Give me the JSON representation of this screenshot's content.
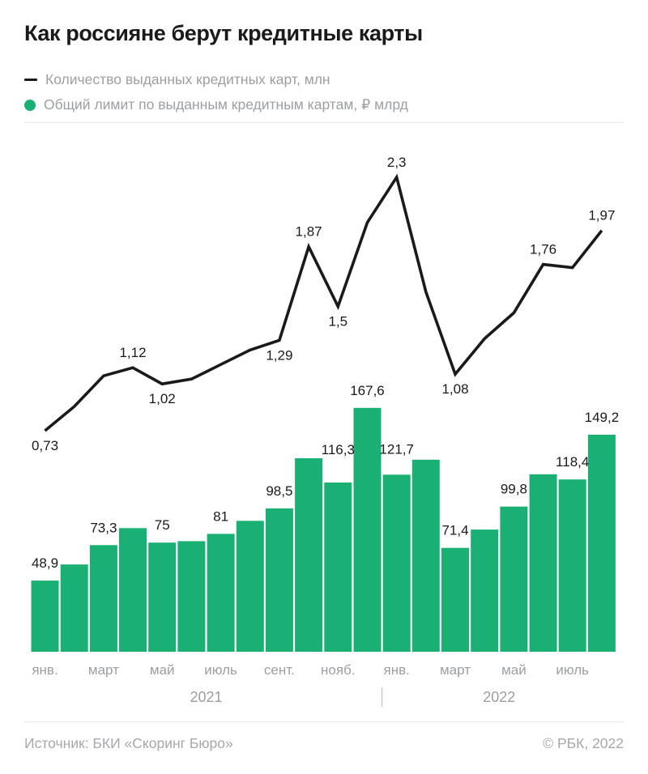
{
  "title": "Как россияне берут кредитные карты",
  "legend": {
    "line_label": "Количество выданных кредитных карт, млн",
    "bar_label": "Общий лимит по выданным кредитным картам, ₽ млрд"
  },
  "colors": {
    "bar_green": "#1ab074",
    "line_black": "#1a1a1a",
    "value_label": "#1a1a1a",
    "gray_text": "#9b9fa3",
    "year_divider": "#c7c9cb",
    "divider": "#e9eaeb",
    "footer_text": "#a5a8ab"
  },
  "footer": {
    "source": "Источник: БКИ «Скоринг Бюро»",
    "copyright": "© РБК, 2022"
  },
  "chart_data": {
    "type": "bar+line",
    "categories": [
      "янв. 2021",
      "февр. 2021",
      "март 2021",
      "апр. 2021",
      "май 2021",
      "июнь 2021",
      "июль 2021",
      "авг. 2021",
      "сент. 2021",
      "окт. 2021",
      "нояб. 2021",
      "дек. 2021",
      "янв. 2022",
      "февр. 2022",
      "март 2022",
      "апр. 2022",
      "май 2022",
      "июнь 2022",
      "июль 2022",
      "авг. 2022"
    ],
    "x_tick_labels": [
      "янв.",
      "март",
      "май",
      "июль",
      "сент.",
      "нояб.",
      "янв.",
      "март",
      "май",
      "июль"
    ],
    "x_tick_every": 2,
    "year_groups": [
      {
        "label": "2021",
        "from_index": 0,
        "to_index": 11
      },
      {
        "label": "2022",
        "from_index": 12,
        "to_index": 19
      }
    ],
    "grid": false,
    "legend_position": "top-left",
    "ylim_line_mln": [
      0,
      2.5
    ],
    "ylim_bars_bln_rub": [
      0,
      180
    ],
    "line_series": {
      "name": "Количество выданных кредитных карт, млн",
      "unit": "млн",
      "values": [
        0.73,
        0.88,
        1.07,
        1.12,
        1.02,
        1.05,
        1.14,
        1.23,
        1.29,
        1.87,
        1.5,
        2.02,
        2.3,
        1.59,
        1.08,
        1.3,
        1.46,
        1.76,
        1.74,
        1.97
      ],
      "labels": [
        {
          "index": 0,
          "text": "0,73",
          "pos": "below"
        },
        {
          "index": 3,
          "text": "1,12",
          "pos": "above"
        },
        {
          "index": 4,
          "text": "1,02",
          "pos": "below"
        },
        {
          "index": 8,
          "text": "1,29",
          "pos": "below"
        },
        {
          "index": 9,
          "text": "1,87",
          "pos": "above"
        },
        {
          "index": 10,
          "text": "1,5",
          "pos": "below"
        },
        {
          "index": 12,
          "text": "2,3",
          "pos": "above"
        },
        {
          "index": 14,
          "text": "1,08",
          "pos": "below"
        },
        {
          "index": 17,
          "text": "1,76",
          "pos": "above"
        },
        {
          "index": 19,
          "text": "1,97",
          "pos": "above"
        }
      ]
    },
    "bar_series": {
      "name": "Общий лимит по выданным кредитным картам, ₽ млрд",
      "unit": "₽ млрд",
      "values": [
        48.9,
        60,
        73.3,
        85,
        75,
        76,
        81,
        90,
        98.5,
        133,
        116.3,
        167.6,
        121.7,
        132,
        71.4,
        84,
        99.8,
        122,
        118.4,
        149.2
      ],
      "labels": [
        {
          "index": 0,
          "text": "48,9"
        },
        {
          "index": 2,
          "text": "73,3"
        },
        {
          "index": 4,
          "text": "75"
        },
        {
          "index": 6,
          "text": "81"
        },
        {
          "index": 8,
          "text": "98,5"
        },
        {
          "index": 10,
          "text": "116,3"
        },
        {
          "index": 11,
          "text": "167,6"
        },
        {
          "index": 12,
          "text": "121,7"
        },
        {
          "index": 14,
          "text": "71,4"
        },
        {
          "index": 16,
          "text": "99,8"
        },
        {
          "index": 18,
          "text": "118,4"
        },
        {
          "index": 19,
          "text": "149,2"
        }
      ]
    }
  }
}
